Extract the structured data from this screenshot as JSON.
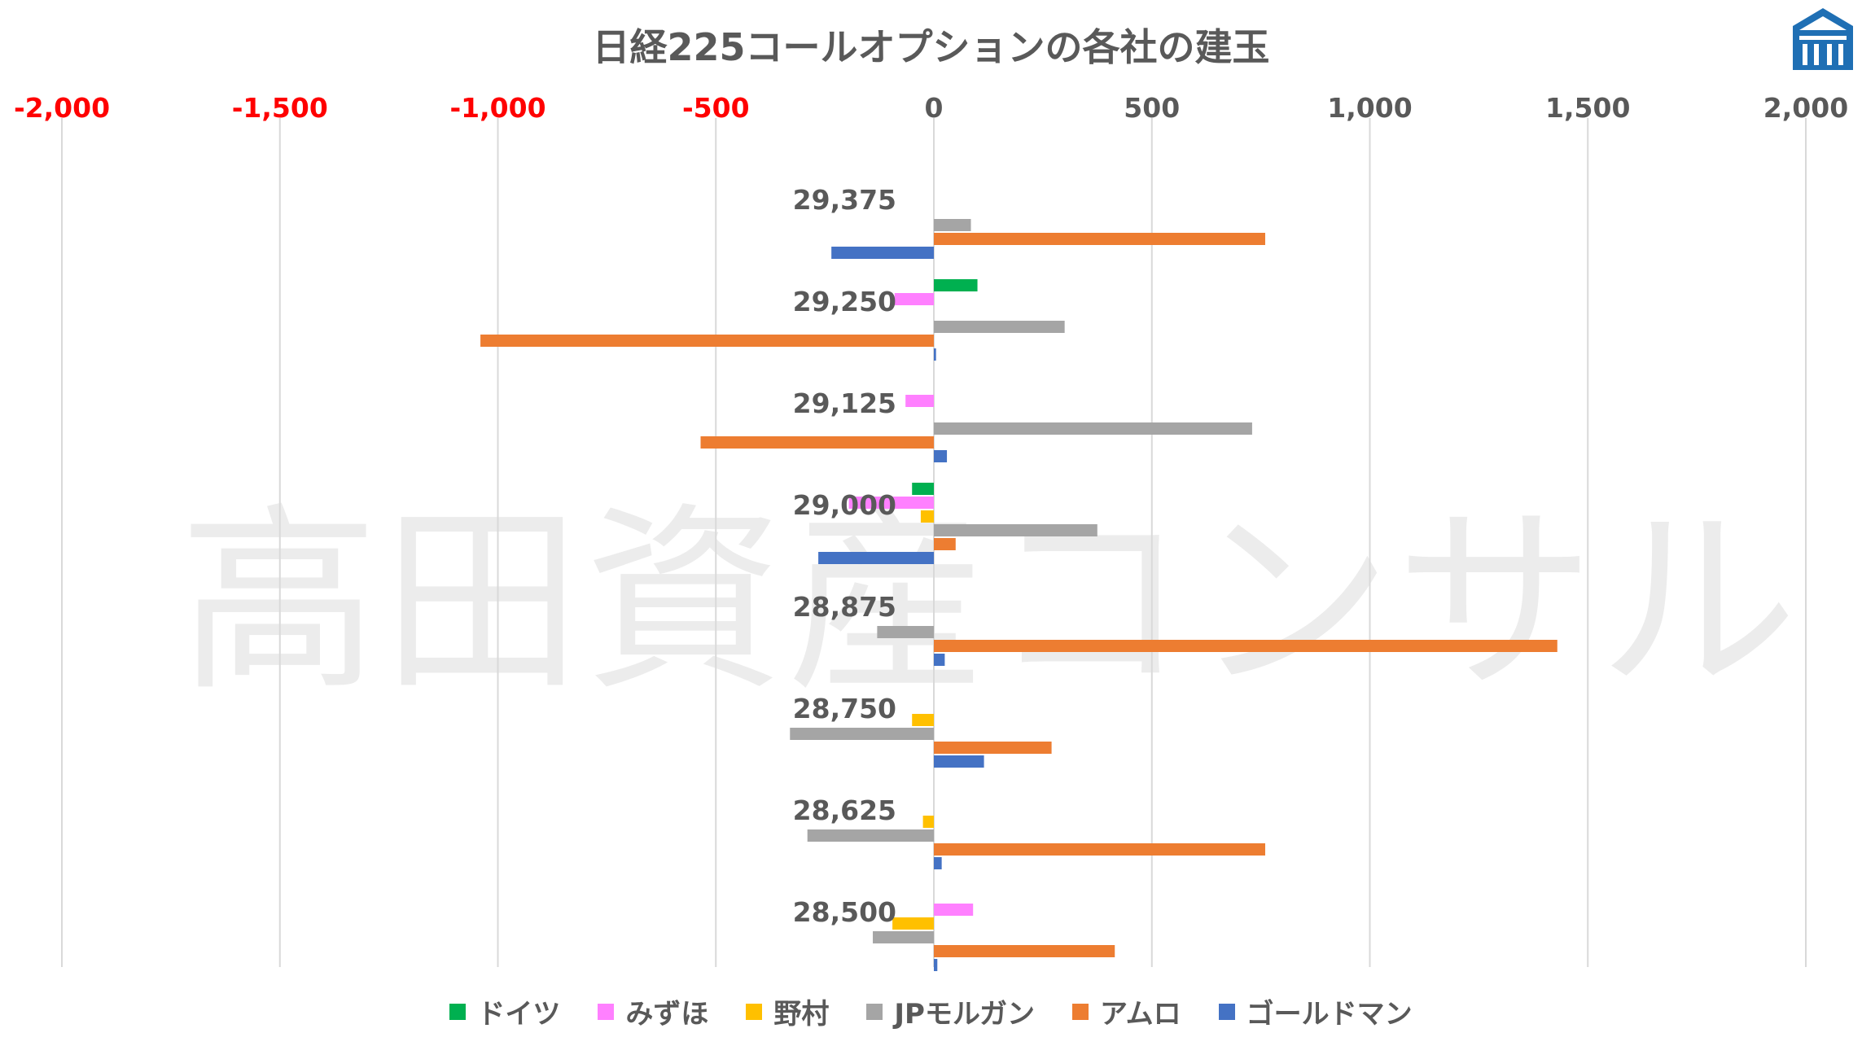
{
  "chart_data": {
    "type": "bar",
    "orientation": "horizontal",
    "title": "日経225コールオプションの各社の建玉",
    "watermark": "高田資産コンサル",
    "categories": [
      "29,375",
      "29,250",
      "29,125",
      "29,000",
      "28,875",
      "28,750",
      "28,625",
      "28,500"
    ],
    "xlim": [
      -2000,
      2000
    ],
    "ticks": [
      -2000,
      -1500,
      -1000,
      -500,
      0,
      500,
      1000,
      1500,
      2000
    ],
    "tick_labels": [
      "-2,000",
      "-1,500",
      "-1,000",
      "-500",
      "0",
      "500",
      "1,000",
      "1,500",
      "2,000"
    ],
    "negative_tick_color": "#ff0000",
    "tick_color": "#595959",
    "grid": "vertical",
    "legend_position": "bottom",
    "series": [
      {
        "name": "ドイツ",
        "color": "#00b050",
        "values": [
          0,
          100,
          0,
          -50,
          0,
          0,
          0,
          0
        ]
      },
      {
        "name": "みずほ",
        "color": "#ff80ff",
        "values": [
          0,
          -90,
          -65,
          -195,
          0,
          0,
          0,
          90
        ]
      },
      {
        "name": "野村",
        "color": "#ffc000",
        "values": [
          0,
          0,
          0,
          -30,
          0,
          -50,
          -25,
          -95
        ]
      },
      {
        "name": "JPモルガン",
        "color": "#a5a5a5",
        "values": [
          85,
          300,
          730,
          375,
          -130,
          -330,
          -290,
          -140
        ]
      },
      {
        "name": "アムロ",
        "color": "#ed7d31",
        "values": [
          760,
          -1040,
          -535,
          50,
          1430,
          270,
          760,
          415
        ]
      },
      {
        "name": "ゴールドマン",
        "color": "#4472c4",
        "values": [
          -235,
          5,
          30,
          -265,
          25,
          115,
          18,
          8
        ]
      }
    ]
  }
}
